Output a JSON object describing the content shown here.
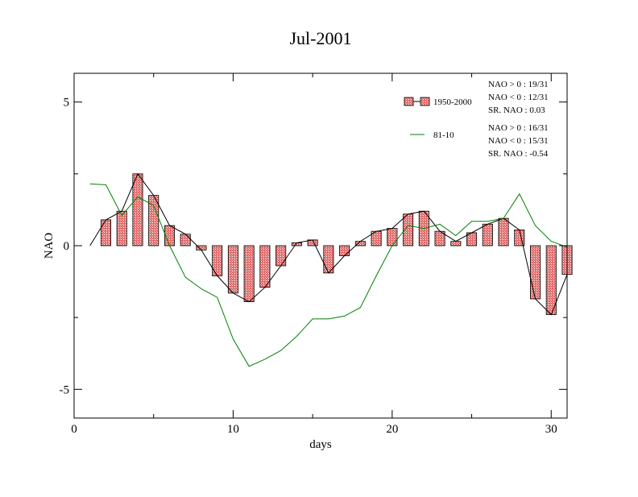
{
  "chart_data": {
    "type": "bar",
    "title": "Jul-2001",
    "xlabel": "days",
    "ylabel": "NAO",
    "xlim": [
      0,
      31
    ],
    "ylim": [
      -6,
      6
    ],
    "x_ticks": [
      0,
      10,
      20,
      30
    ],
    "y_ticks": [
      -5,
      0,
      5
    ],
    "legend_position": "top-right",
    "colors": {
      "bar_fill": "#e06a6a",
      "bar_hatch": "#ffffff",
      "line_1950": "#000000",
      "line_8110": "#008000"
    },
    "x": [
      1,
      2,
      3,
      4,
      5,
      6,
      7,
      8,
      9,
      10,
      11,
      12,
      13,
      14,
      15,
      16,
      17,
      18,
      19,
      20,
      21,
      22,
      23,
      24,
      25,
      26,
      27,
      28,
      29,
      30,
      31
    ],
    "series": [
      {
        "name": "1950-2000",
        "style": "bar+line",
        "values": [
          0.0,
          0.9,
          1.2,
          2.5,
          1.75,
          0.7,
          0.4,
          -0.15,
          -1.05,
          -1.65,
          -1.95,
          -1.45,
          -0.7,
          0.1,
          0.2,
          -0.95,
          -0.35,
          0.15,
          0.5,
          0.6,
          1.1,
          1.2,
          0.5,
          0.15,
          0.45,
          0.75,
          0.95,
          0.55,
          -1.85,
          -2.4,
          -1.0
        ]
      },
      {
        "name": "81-10",
        "style": "line",
        "values": [
          2.15,
          2.12,
          1.05,
          1.7,
          1.4,
          0.0,
          -1.1,
          -1.5,
          -1.8,
          -3.25,
          -4.2,
          -3.95,
          -3.65,
          -3.15,
          -2.55,
          -2.55,
          -2.45,
          -2.15,
          -1.05,
          0.0,
          0.7,
          0.6,
          0.75,
          0.35,
          0.85,
          0.85,
          0.95,
          1.8,
          0.7,
          0.15,
          -0.05
        ]
      }
    ],
    "legend": [
      {
        "name": "1950-2000",
        "stats": [
          "NAO > 0 : 19/31",
          "NAO < 0 : 12/31",
          "SR. NAO :  0.03"
        ]
      },
      {
        "name": "81-10",
        "stats": [
          "NAO > 0 : 16/31",
          "NAO < 0 : 15/31",
          "SR. NAO : -0.54"
        ]
      }
    ]
  }
}
